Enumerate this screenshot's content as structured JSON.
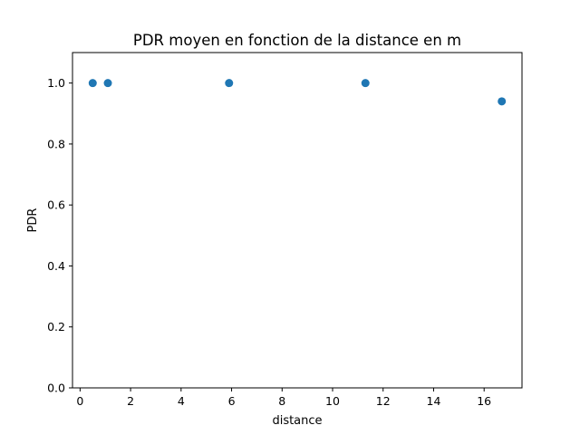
{
  "chart_data": {
    "type": "scatter",
    "title": "PDR moyen en fonction de la distance en m",
    "xlabel": "distance",
    "ylabel": "PDR",
    "xlim": [
      -0.3,
      17.5
    ],
    "ylim": [
      0,
      1.1
    ],
    "xticks": [
      0,
      2,
      4,
      6,
      8,
      10,
      12,
      14,
      16
    ],
    "yticks": [
      0.0,
      0.2,
      0.4,
      0.6,
      0.8,
      1.0
    ],
    "xtick_labels": [
      "0",
      "2",
      "4",
      "6",
      "8",
      "10",
      "12",
      "14",
      "16"
    ],
    "ytick_labels": [
      "0.0",
      "0.2",
      "0.4",
      "0.6",
      "0.8",
      "1.0"
    ],
    "grid": false,
    "series": [
      {
        "color": "#1f77b4",
        "x": [
          0.5,
          1.1,
          5.9,
          11.3,
          16.7
        ],
        "y": [
          1.0,
          1.0,
          1.0,
          1.0,
          0.94
        ]
      }
    ]
  }
}
